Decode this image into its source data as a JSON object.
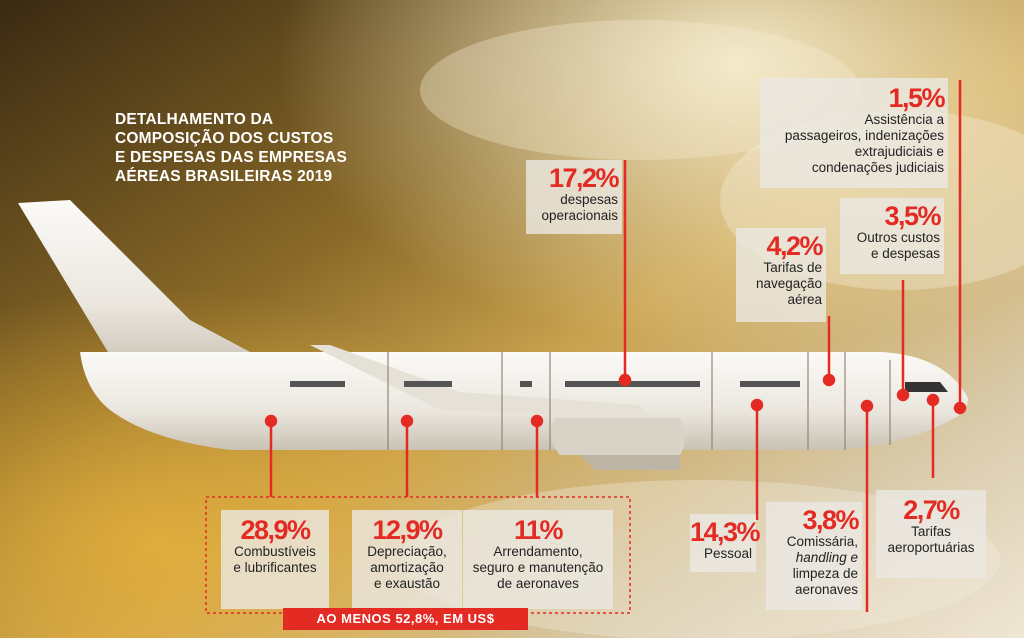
{
  "title_lines": [
    "DETALHAMENTO DA",
    "COMPOSIÇÃO DOS CUSTOS",
    "E DESPESAS DAS EMPRESAS",
    "AÉREAS BRASILEIRAS 2019"
  ],
  "colors": {
    "accent": "#e32b24",
    "text": "#222222",
    "sky_dark": "#3a2a12",
    "sky_light": "#f1e6c8"
  },
  "items": [
    {
      "pct": "28,9%",
      "label": [
        "Combustíveis",
        "e lubrificantes"
      ]
    },
    {
      "pct": "12,9%",
      "label": [
        "Depreciação,",
        "amortização",
        "e exaustão"
      ]
    },
    {
      "pct": "11%",
      "label": [
        "Arrendamento,",
        "seguro e manutenção",
        "de aeronaves"
      ]
    },
    {
      "pct": "17,2%",
      "label": [
        "despesas",
        "operacionais"
      ]
    },
    {
      "pct": "14,3%",
      "label": [
        "Pessoal"
      ]
    },
    {
      "pct": "3,8%",
      "label": [
        "Comissária,",
        "handling e",
        "limpeza de",
        "aeronaves"
      ]
    },
    {
      "pct": "4,2%",
      "label": [
        "Tarifas de",
        "navegação",
        "aérea"
      ]
    },
    {
      "pct": "3,5%",
      "label": [
        "Outros custos",
        "e despesas"
      ]
    },
    {
      "pct": "2,7%",
      "label": [
        "Tarifas",
        "aeroportuárias"
      ]
    },
    {
      "pct": "1,5%",
      "label": [
        "Assistência a",
        "passageiros, indenizações",
        "extrajudiciais e",
        "condenações judiciais"
      ]
    }
  ],
  "footer": "AO MENOS 52,8%, EM US$"
}
